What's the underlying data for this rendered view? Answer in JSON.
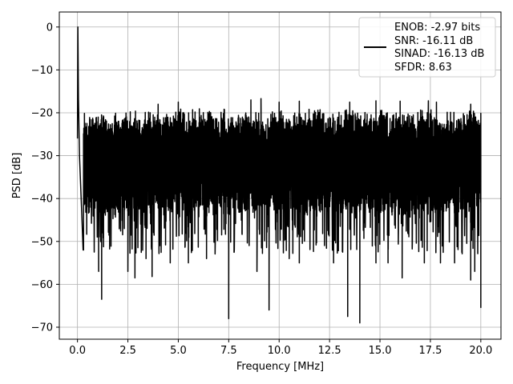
{
  "chart_data": {
    "type": "line",
    "xlabel": "Frequency [MHz]",
    "ylabel": "PSD [dB]",
    "xlim": [
      -0.9,
      21.0
    ],
    "ylim": [
      -72.8,
      3.5
    ],
    "grid": true,
    "legend_placement": "top-right",
    "line_color": "#000000",
    "x_ticks": [
      0.0,
      2.5,
      5.0,
      7.5,
      10.0,
      12.5,
      15.0,
      17.5,
      20.0
    ],
    "x_tick_labels": [
      "0.0",
      "2.5",
      "5.0",
      "7.5",
      "10.0",
      "12.5",
      "15.0",
      "17.5",
      "20.0"
    ],
    "y_ticks": [
      0,
      -10,
      -20,
      -30,
      -40,
      -50,
      -60,
      -70
    ],
    "y_tick_labels": [
      "0",
      "−10",
      "−20",
      "−30",
      "−40",
      "−50",
      "−60",
      "−70"
    ],
    "legend_lines": [
      "ENOB: -2.97 bits",
      "SNR: -16.11 dB",
      "SINAD: -16.13 dB",
      "SFDR: 8.63"
    ],
    "noise_floor": {
      "x_range": [
        0,
        20
      ],
      "band_top_db": -22,
      "band_bottom_db": -42,
      "typical_peak_db": -19,
      "typical_trough_db": -45
    },
    "series": [
      {
        "values_note_x": "MHz",
        "points": [
          [
            0.0,
            -26
          ],
          [
            0.02,
            0
          ],
          [
            0.05,
            -18
          ],
          [
            0.1,
            -30
          ],
          [
            0.2,
            -42
          ],
          [
            0.3,
            -52
          ]
        ],
        "dips": [
          [
            0.28,
            -52
          ],
          [
            1.05,
            -57
          ],
          [
            1.2,
            -63.5
          ],
          [
            2.5,
            -57
          ],
          [
            2.85,
            -58.5
          ],
          [
            3.4,
            -54
          ],
          [
            3.7,
            -58.2
          ],
          [
            4.6,
            -55
          ],
          [
            5.5,
            -55
          ],
          [
            6.4,
            -54
          ],
          [
            7.5,
            -68
          ],
          [
            8.9,
            -57
          ],
          [
            9.5,
            -66
          ],
          [
            10.5,
            -54
          ],
          [
            11.0,
            -55
          ],
          [
            12.7,
            -55
          ],
          [
            13.4,
            -67.5
          ],
          [
            14.0,
            -69
          ],
          [
            14.8,
            -55
          ],
          [
            15.4,
            -55
          ],
          [
            16.1,
            -58.5
          ],
          [
            17.2,
            -55
          ],
          [
            18.0,
            -55
          ],
          [
            18.7,
            -55
          ],
          [
            19.5,
            -59
          ],
          [
            19.7,
            -57
          ],
          [
            20.0,
            -65.5
          ]
        ],
        "peaks": [
          [
            0.02,
            0
          ],
          [
            0.05,
            -17
          ],
          [
            4.0,
            -18
          ],
          [
            5.0,
            -17.5
          ],
          [
            8.6,
            -17
          ],
          [
            9.1,
            -16.7
          ],
          [
            10.0,
            -17.5
          ],
          [
            11.0,
            -17.3
          ],
          [
            13.5,
            -17.5
          ],
          [
            14.8,
            -17.2
          ],
          [
            16.0,
            -17.3
          ],
          [
            17.4,
            -17.2
          ],
          [
            17.8,
            -17.5
          ],
          [
            19.5,
            -18
          ]
        ]
      }
    ]
  }
}
